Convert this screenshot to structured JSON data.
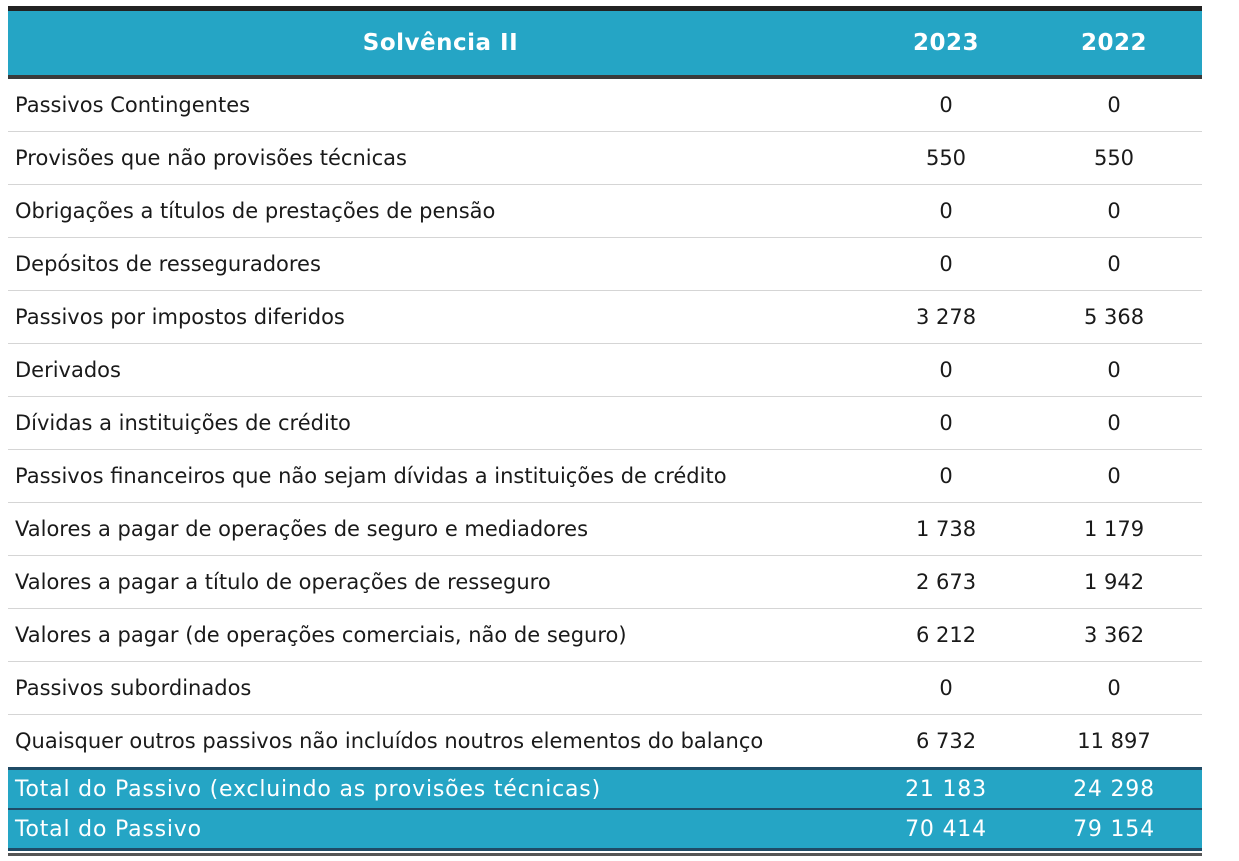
{
  "table": {
    "headers": [
      "Solvência II",
      "2023",
      "2022"
    ],
    "rows": [
      {
        "label": "Passivos Contingentes",
        "y2023": "0",
        "y2022": "0"
      },
      {
        "label": "Provisões que não provisões técnicas",
        "y2023": "550",
        "y2022": "550"
      },
      {
        "label": "Obrigações a títulos de prestações de pensão",
        "y2023": "0",
        "y2022": "0"
      },
      {
        "label": "Depósitos de resseguradores",
        "y2023": "0",
        "y2022": "0"
      },
      {
        "label": "Passivos por impostos diferidos",
        "y2023": "3 278",
        "y2022": "5 368"
      },
      {
        "label": "Derivados",
        "y2023": "0",
        "y2022": "0"
      },
      {
        "label": "Dívidas a instituições de crédito",
        "y2023": "0",
        "y2022": "0"
      },
      {
        "label": "Passivos financeiros que não sejam dívidas a instituições de crédito",
        "y2023": "0",
        "y2022": "0"
      },
      {
        "label": "Valores a pagar de operações de seguro e mediadores",
        "y2023": "1 738",
        "y2022": "1 179"
      },
      {
        "label": "Valores a pagar a título de operações de resseguro",
        "y2023": "2 673",
        "y2022": "1 942"
      },
      {
        "label": "Valores a pagar (de operações comerciais, não de seguro)",
        "y2023": "6 212",
        "y2022": "3 362"
      },
      {
        "label": "Passivos subordinados",
        "y2023": "0",
        "y2022": "0"
      },
      {
        "label": "Quaisquer outros passivos não incluídos noutros elementos do balanço",
        "y2023": "6 732",
        "y2022": "11 897"
      }
    ],
    "totals": [
      {
        "label": "Total do Passivo (excluindo as provisões técnicas)",
        "y2023": "21 183",
        "y2022": "24 298"
      },
      {
        "label": "Total do Passivo",
        "y2023": "70 414",
        "y2022": "79 154"
      }
    ]
  },
  "colors": {
    "header_bg": "#25a5c5",
    "total_bg": "#25a5c5",
    "border_dark": "#1f4b66"
  }
}
